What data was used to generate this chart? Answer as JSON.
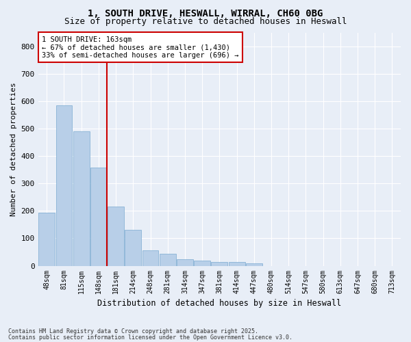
{
  "title": "1, SOUTH DRIVE, HESWALL, WIRRAL, CH60 0BG",
  "subtitle": "Size of property relative to detached houses in Heswall",
  "xlabel": "Distribution of detached houses by size in Heswall",
  "ylabel": "Number of detached properties",
  "categories": [
    "48sqm",
    "81sqm",
    "115sqm",
    "148sqm",
    "181sqm",
    "214sqm",
    "248sqm",
    "281sqm",
    "314sqm",
    "347sqm",
    "381sqm",
    "414sqm",
    "447sqm",
    "480sqm",
    "514sqm",
    "547sqm",
    "580sqm",
    "613sqm",
    "647sqm",
    "680sqm",
    "713sqm"
  ],
  "values": [
    193,
    585,
    490,
    358,
    215,
    130,
    55,
    43,
    25,
    18,
    15,
    15,
    10,
    0,
    0,
    0,
    0,
    0,
    0,
    0,
    0
  ],
  "bar_color": "#b8cfe8",
  "bar_edge_color": "#7aaad0",
  "vline_x_idx": 3.5,
  "vline_color": "#cc0000",
  "annotation_title": "1 SOUTH DRIVE: 163sqm",
  "annotation_line1": "← 67% of detached houses are smaller (1,430)",
  "annotation_line2": "33% of semi-detached houses are larger (696) →",
  "annotation_box_color": "#cc0000",
  "annotation_bg_color": "#ffffff",
  "ylim": [
    0,
    850
  ],
  "yticks": [
    0,
    100,
    200,
    300,
    400,
    500,
    600,
    700,
    800
  ],
  "bg_color": "#e8eef7",
  "footnote1": "Contains HM Land Registry data © Crown copyright and database right 2025.",
  "footnote2": "Contains public sector information licensed under the Open Government Licence v3.0.",
  "title_fontsize": 10,
  "subtitle_fontsize": 9
}
